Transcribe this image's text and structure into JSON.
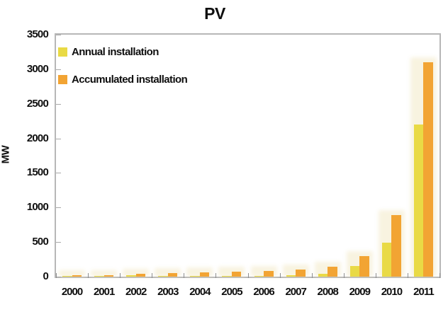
{
  "title": "PV",
  "y_axis_title": "MW",
  "legend": {
    "annual_label": "Annual installation",
    "accumulated_label": "Accumulated installation"
  },
  "colors": {
    "annual": "#e9da45",
    "accumulated": "#f2a433",
    "axis_border": "#b7b7b7",
    "tick": "#9a9a9a",
    "text": "#0f0f0f",
    "glow": "rgba(242,234,198,0.55)"
  },
  "chart_data": {
    "type": "bar",
    "title": "PV",
    "xlabel": "",
    "ylabel": "MW",
    "categories": [
      "2000",
      "2001",
      "2002",
      "2003",
      "2004",
      "2005",
      "2006",
      "2007",
      "2008",
      "2009",
      "2010",
      "2011"
    ],
    "series": [
      {
        "name": "Annual installation",
        "color": "#e9da45",
        "values": [
          15,
          10,
          20,
          10,
          10,
          8,
          10,
          20,
          45,
          150,
          490,
          2200
        ]
      },
      {
        "name": "Accumulated installation",
        "color": "#f2a433",
        "values": [
          19,
          24,
          45,
          52,
          62,
          70,
          85,
          100,
          140,
          300,
          890,
          3100
        ]
      }
    ],
    "ylim": [
      0,
      3500
    ],
    "ytick_step": 500,
    "grid": false,
    "legend_position": "top-left-inside",
    "units": "MW"
  }
}
